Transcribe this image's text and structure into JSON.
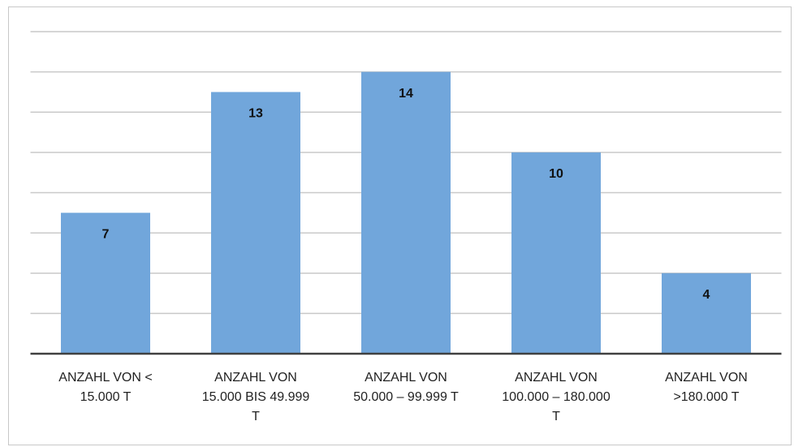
{
  "chart_data": {
    "type": "bar",
    "categories": [
      "ANZAHL VON < 15.000 T",
      "ANZAHL VON 15.000 BIS 49.999 T",
      "ANZAHL VON 50.000 – 99.999 T",
      "ANZAHL VON 100.000 – 180.000 T",
      "ANZAHL VON >180.000 T"
    ],
    "values": [
      7,
      13,
      14,
      10,
      4
    ],
    "color": "#71a6db",
    "ylim": [
      0,
      16
    ],
    "yticks": [
      0,
      2,
      4,
      6,
      8,
      10,
      12,
      14,
      16
    ],
    "grid": true
  }
}
